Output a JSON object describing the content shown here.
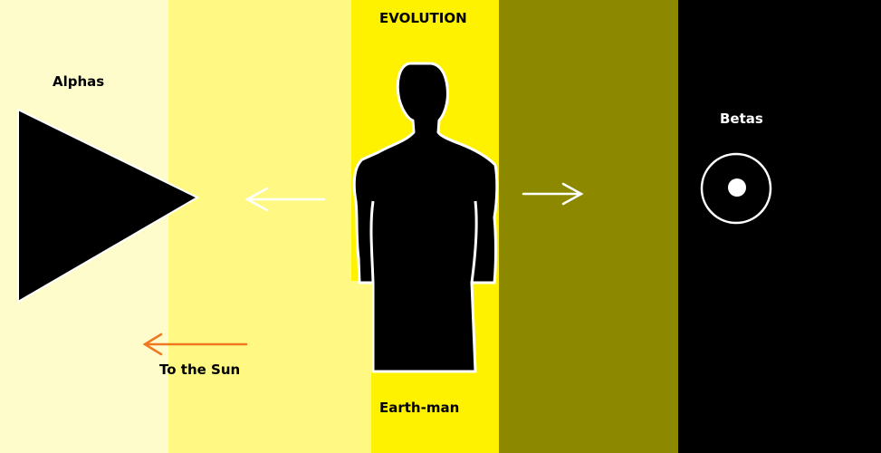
{
  "title": "EVOLUTION",
  "labels": {
    "alphas": "Alphas",
    "betas": "Betas",
    "to_the_sun": "To the Sun",
    "earth_man": "Earth-man"
  },
  "colors": {
    "band_1": "#fffccc",
    "band_2": "#fff882",
    "band_3": "#fff200",
    "band_4": "#8c8800",
    "band_5": "#000000",
    "sun_arrow": "#f07820"
  },
  "icons": [
    "triangle-shape",
    "human-silhouette",
    "circle-with-dot",
    "left-arrow",
    "right-arrow"
  ]
}
